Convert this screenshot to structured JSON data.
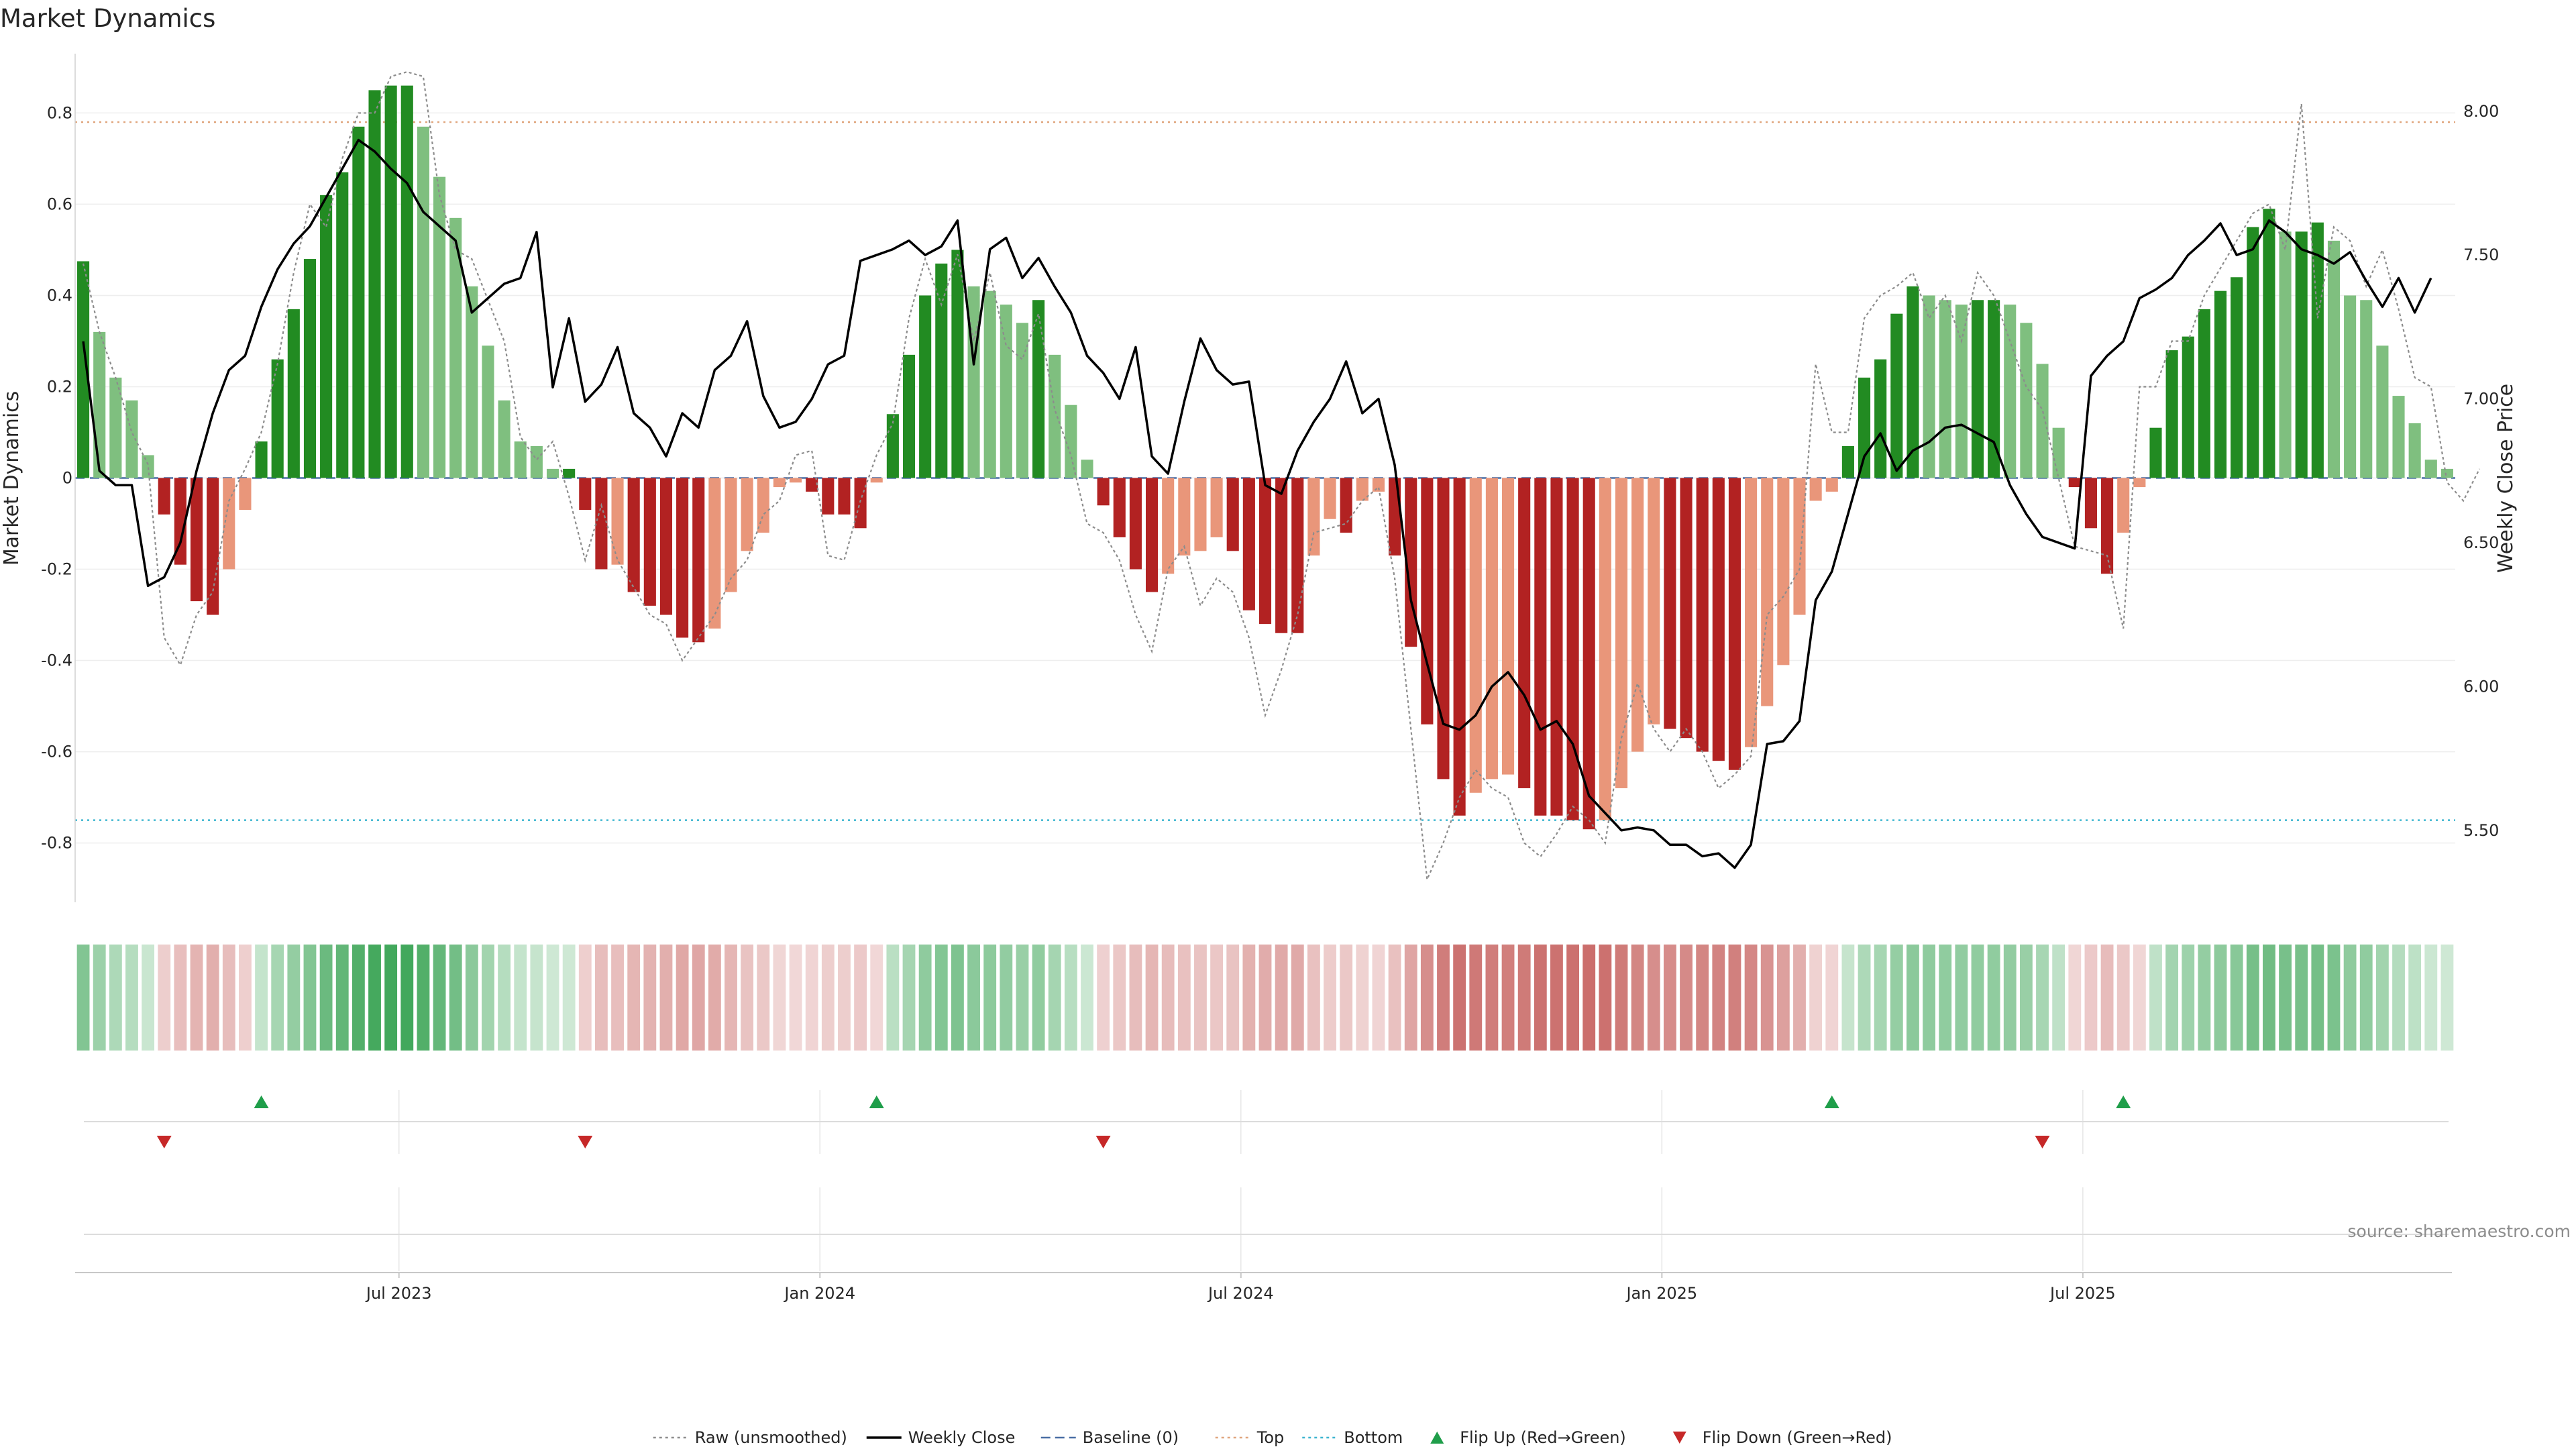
{
  "chart_data": {
    "type": "bar+line",
    "title": "Market Dynamics",
    "source": "source: sharemaestro.com",
    "y_left": {
      "label": "Market Dynamics",
      "range": [
        -0.93,
        0.93
      ],
      "ticks": [
        "0.8",
        "0.6",
        "0.4",
        "0.2",
        "0",
        "-0.2",
        "-0.4",
        "-0.6",
        "-0.8"
      ],
      "tick_values": [
        0.8,
        0.6,
        0.4,
        0.2,
        0,
        -0.2,
        -0.4,
        -0.6,
        -0.8
      ]
    },
    "y_right": {
      "label": "Weekly Close Price",
      "range": [
        5.25,
        8.2
      ],
      "ticks": [
        "8.00",
        "7.50",
        "7.00",
        "6.50",
        "6.00",
        "5.50"
      ],
      "tick_values": [
        8.0,
        7.5,
        7.0,
        6.5,
        6.0,
        5.5
      ]
    },
    "x_ticks": [
      {
        "label": "Jul 2023",
        "week": 19.5
      },
      {
        "label": "Jan 2024",
        "week": 45.5
      },
      {
        "label": "Jul 2024",
        "week": 71.5
      },
      {
        "label": "Jan 2025",
        "week": 97.5
      },
      {
        "label": "Jul 2025",
        "week": 123.5
      }
    ],
    "reference_lines": {
      "baseline": 0,
      "top": 0.78,
      "bottom": -0.75
    },
    "market_dynamics": [
      0.475,
      0.32,
      0.22,
      0.17,
      0.05,
      -0.08,
      -0.19,
      -0.27,
      -0.3,
      -0.2,
      -0.07,
      0.08,
      0.26,
      0.37,
      0.48,
      0.62,
      0.67,
      0.77,
      0.85,
      0.86,
      0.86,
      0.77,
      0.66,
      0.57,
      0.42,
      0.29,
      0.17,
      0.08,
      0.07,
      0.02,
      0.02,
      -0.07,
      -0.2,
      -0.19,
      -0.25,
      -0.28,
      -0.3,
      -0.35,
      -0.36,
      -0.33,
      -0.25,
      -0.16,
      -0.12,
      -0.02,
      -0.01,
      -0.03,
      -0.08,
      -0.08,
      -0.11,
      -0.01,
      0.14,
      0.27,
      0.4,
      0.47,
      0.5,
      0.42,
      0.41,
      0.38,
      0.34,
      0.39,
      0.27,
      0.16,
      0.04,
      -0.06,
      -0.13,
      -0.2,
      -0.25,
      -0.21,
      -0.17,
      -0.16,
      -0.13,
      -0.16,
      -0.29,
      -0.32,
      -0.34,
      -0.34,
      -0.17,
      -0.09,
      -0.12,
      -0.05,
      -0.03,
      -0.17,
      -0.37,
      -0.54,
      -0.66,
      -0.74,
      -0.69,
      -0.66,
      -0.65,
      -0.68,
      -0.74,
      -0.74,
      -0.75,
      -0.77,
      -0.75,
      -0.68,
      -0.6,
      -0.54,
      -0.55,
      -0.57,
      -0.6,
      -0.62,
      -0.64,
      -0.59,
      -0.5,
      -0.41,
      -0.3,
      -0.05,
      -0.03,
      0.07,
      0.22,
      0.26,
      0.36,
      0.42,
      0.4,
      0.39,
      0.38,
      0.39,
      0.39,
      0.38,
      0.34,
      0.25,
      0.11,
      -0.02,
      -0.11,
      -0.21,
      -0.12,
      -0.02,
      0.11,
      0.28,
      0.31,
      0.37,
      0.41,
      0.44,
      0.55,
      0.59,
      0.54,
      0.54,
      0.56,
      0.52,
      0.4,
      0.39,
      0.29,
      0.18,
      0.12,
      0.04,
      0.02
    ],
    "raw_unsmoothed": [
      0.47,
      0.32,
      0.22,
      0.1,
      0.03,
      -0.35,
      -0.41,
      -0.3,
      -0.25,
      -0.05,
      0.02,
      0.1,
      0.25,
      0.45,
      0.6,
      0.55,
      0.7,
      0.8,
      0.8,
      0.88,
      0.89,
      0.88,
      0.62,
      0.5,
      0.48,
      0.39,
      0.3,
      0.09,
      0.04,
      0.08,
      -0.04,
      -0.18,
      -0.06,
      -0.18,
      -0.24,
      -0.3,
      -0.32,
      -0.4,
      -0.35,
      -0.3,
      -0.22,
      -0.18,
      -0.08,
      -0.05,
      0.05,
      0.06,
      -0.17,
      -0.18,
      -0.05,
      0.05,
      0.12,
      0.35,
      0.48,
      0.38,
      0.49,
      0.3,
      0.45,
      0.29,
      0.26,
      0.36,
      0.15,
      0.05,
      -0.1,
      -0.12,
      -0.18,
      -0.3,
      -0.38,
      -0.2,
      -0.15,
      -0.28,
      -0.22,
      -0.25,
      -0.35,
      -0.52,
      -0.42,
      -0.3,
      -0.12,
      -0.11,
      -0.1,
      -0.05,
      -0.02,
      -0.22,
      -0.55,
      -0.88,
      -0.8,
      -0.7,
      -0.64,
      -0.68,
      -0.7,
      -0.8,
      -0.83,
      -0.78,
      -0.72,
      -0.75,
      -0.8,
      -0.57,
      -0.45,
      -0.55,
      -0.6,
      -0.55,
      -0.6,
      -0.68,
      -0.65,
      -0.61,
      -0.3,
      -0.26,
      -0.2,
      0.25,
      0.1,
      0.1,
      0.35,
      0.4,
      0.42,
      0.45,
      0.35,
      0.4,
      0.3,
      0.45,
      0.4,
      0.3,
      0.2,
      0.15,
      0.0,
      -0.15,
      -0.16,
      -0.17,
      -0.33,
      0.2,
      0.2,
      0.3,
      0.3,
      0.4,
      0.46,
      0.52,
      0.58,
      0.6,
      0.5,
      0.82,
      0.35,
      0.55,
      0.52,
      0.42,
      0.5,
      0.37,
      0.22,
      0.2,
      -0.01,
      -0.05,
      0.02
    ],
    "weekly_close": [
      7.2,
      6.75,
      6.7,
      6.7,
      6.35,
      6.38,
      6.5,
      6.75,
      6.95,
      7.1,
      7.15,
      7.32,
      7.45,
      7.54,
      7.6,
      7.7,
      7.8,
      7.9,
      7.86,
      7.8,
      7.75,
      7.65,
      7.6,
      7.55,
      7.3,
      7.35,
      7.4,
      7.42,
      7.58,
      7.04,
      7.28,
      6.99,
      7.05,
      7.18,
      6.95,
      6.9,
      6.8,
      6.95,
      6.9,
      7.1,
      7.15,
      7.27,
      7.01,
      6.9,
      6.92,
      7.0,
      7.12,
      7.15,
      7.48,
      7.5,
      7.52,
      7.55,
      7.5,
      7.53,
      7.62,
      7.12,
      7.52,
      7.56,
      7.42,
      7.49,
      7.39,
      7.3,
      7.15,
      7.09,
      7.0,
      7.18,
      6.8,
      6.74,
      6.99,
      7.21,
      7.1,
      7.05,
      7.06,
      6.7,
      6.67,
      6.82,
      6.92,
      7.0,
      7.13,
      6.95,
      7.0,
      6.77,
      6.3,
      6.08,
      5.87,
      5.85,
      5.9,
      6.0,
      6.05,
      5.97,
      5.85,
      5.88,
      5.8,
      5.62,
      5.56,
      5.5,
      5.51,
      5.5,
      5.45,
      5.45,
      5.41,
      5.42,
      5.37,
      5.45,
      5.8,
      5.81,
      5.88,
      6.3,
      6.4,
      6.6,
      6.8,
      6.88,
      6.75,
      6.82,
      6.85,
      6.9,
      6.91,
      6.88,
      6.85,
      6.7,
      6.6,
      6.52,
      6.5,
      6.48,
      7.08,
      7.15,
      7.2,
      7.35,
      7.38,
      7.42,
      7.5,
      7.55,
      7.61,
      7.5,
      7.52,
      7.62,
      7.58,
      7.52,
      7.5,
      7.47,
      7.51,
      7.41,
      7.32,
      7.42,
      7.3,
      7.42
    ],
    "flip_up_weeks": [
      11,
      49,
      108,
      126
    ],
    "flip_down_weeks": [
      5,
      31,
      63,
      121
    ],
    "legend": {
      "position": "bottom",
      "items": [
        {
          "label": "Raw (unsmoothed)",
          "style": "dotted",
          "color": "#8c8c8c"
        },
        {
          "label": "Weekly Close",
          "style": "solid",
          "color": "#000000"
        },
        {
          "label": "Baseline (0)",
          "style": "dashed",
          "color": "#4a6fa5"
        },
        {
          "label": "Top",
          "style": "dotted",
          "color": "#e0a57d"
        },
        {
          "label": "Bottom",
          "style": "dotted",
          "color": "#3fb6d0"
        },
        {
          "label": "Flip Up (Red→Green)",
          "style": "triangle-up",
          "color": "#1f9e4a"
        },
        {
          "label": "Flip Down (Green→Red)",
          "style": "triangle-down",
          "color": "#c62828"
        }
      ]
    },
    "colors": {
      "strong_green": "#228b22",
      "weak_green": "#7fbf7f",
      "strong_red": "#b22222",
      "weak_red": "#e9967a",
      "heat_green": "#2e9e4a",
      "heat_red": "#c0504d"
    },
    "grid": true
  }
}
